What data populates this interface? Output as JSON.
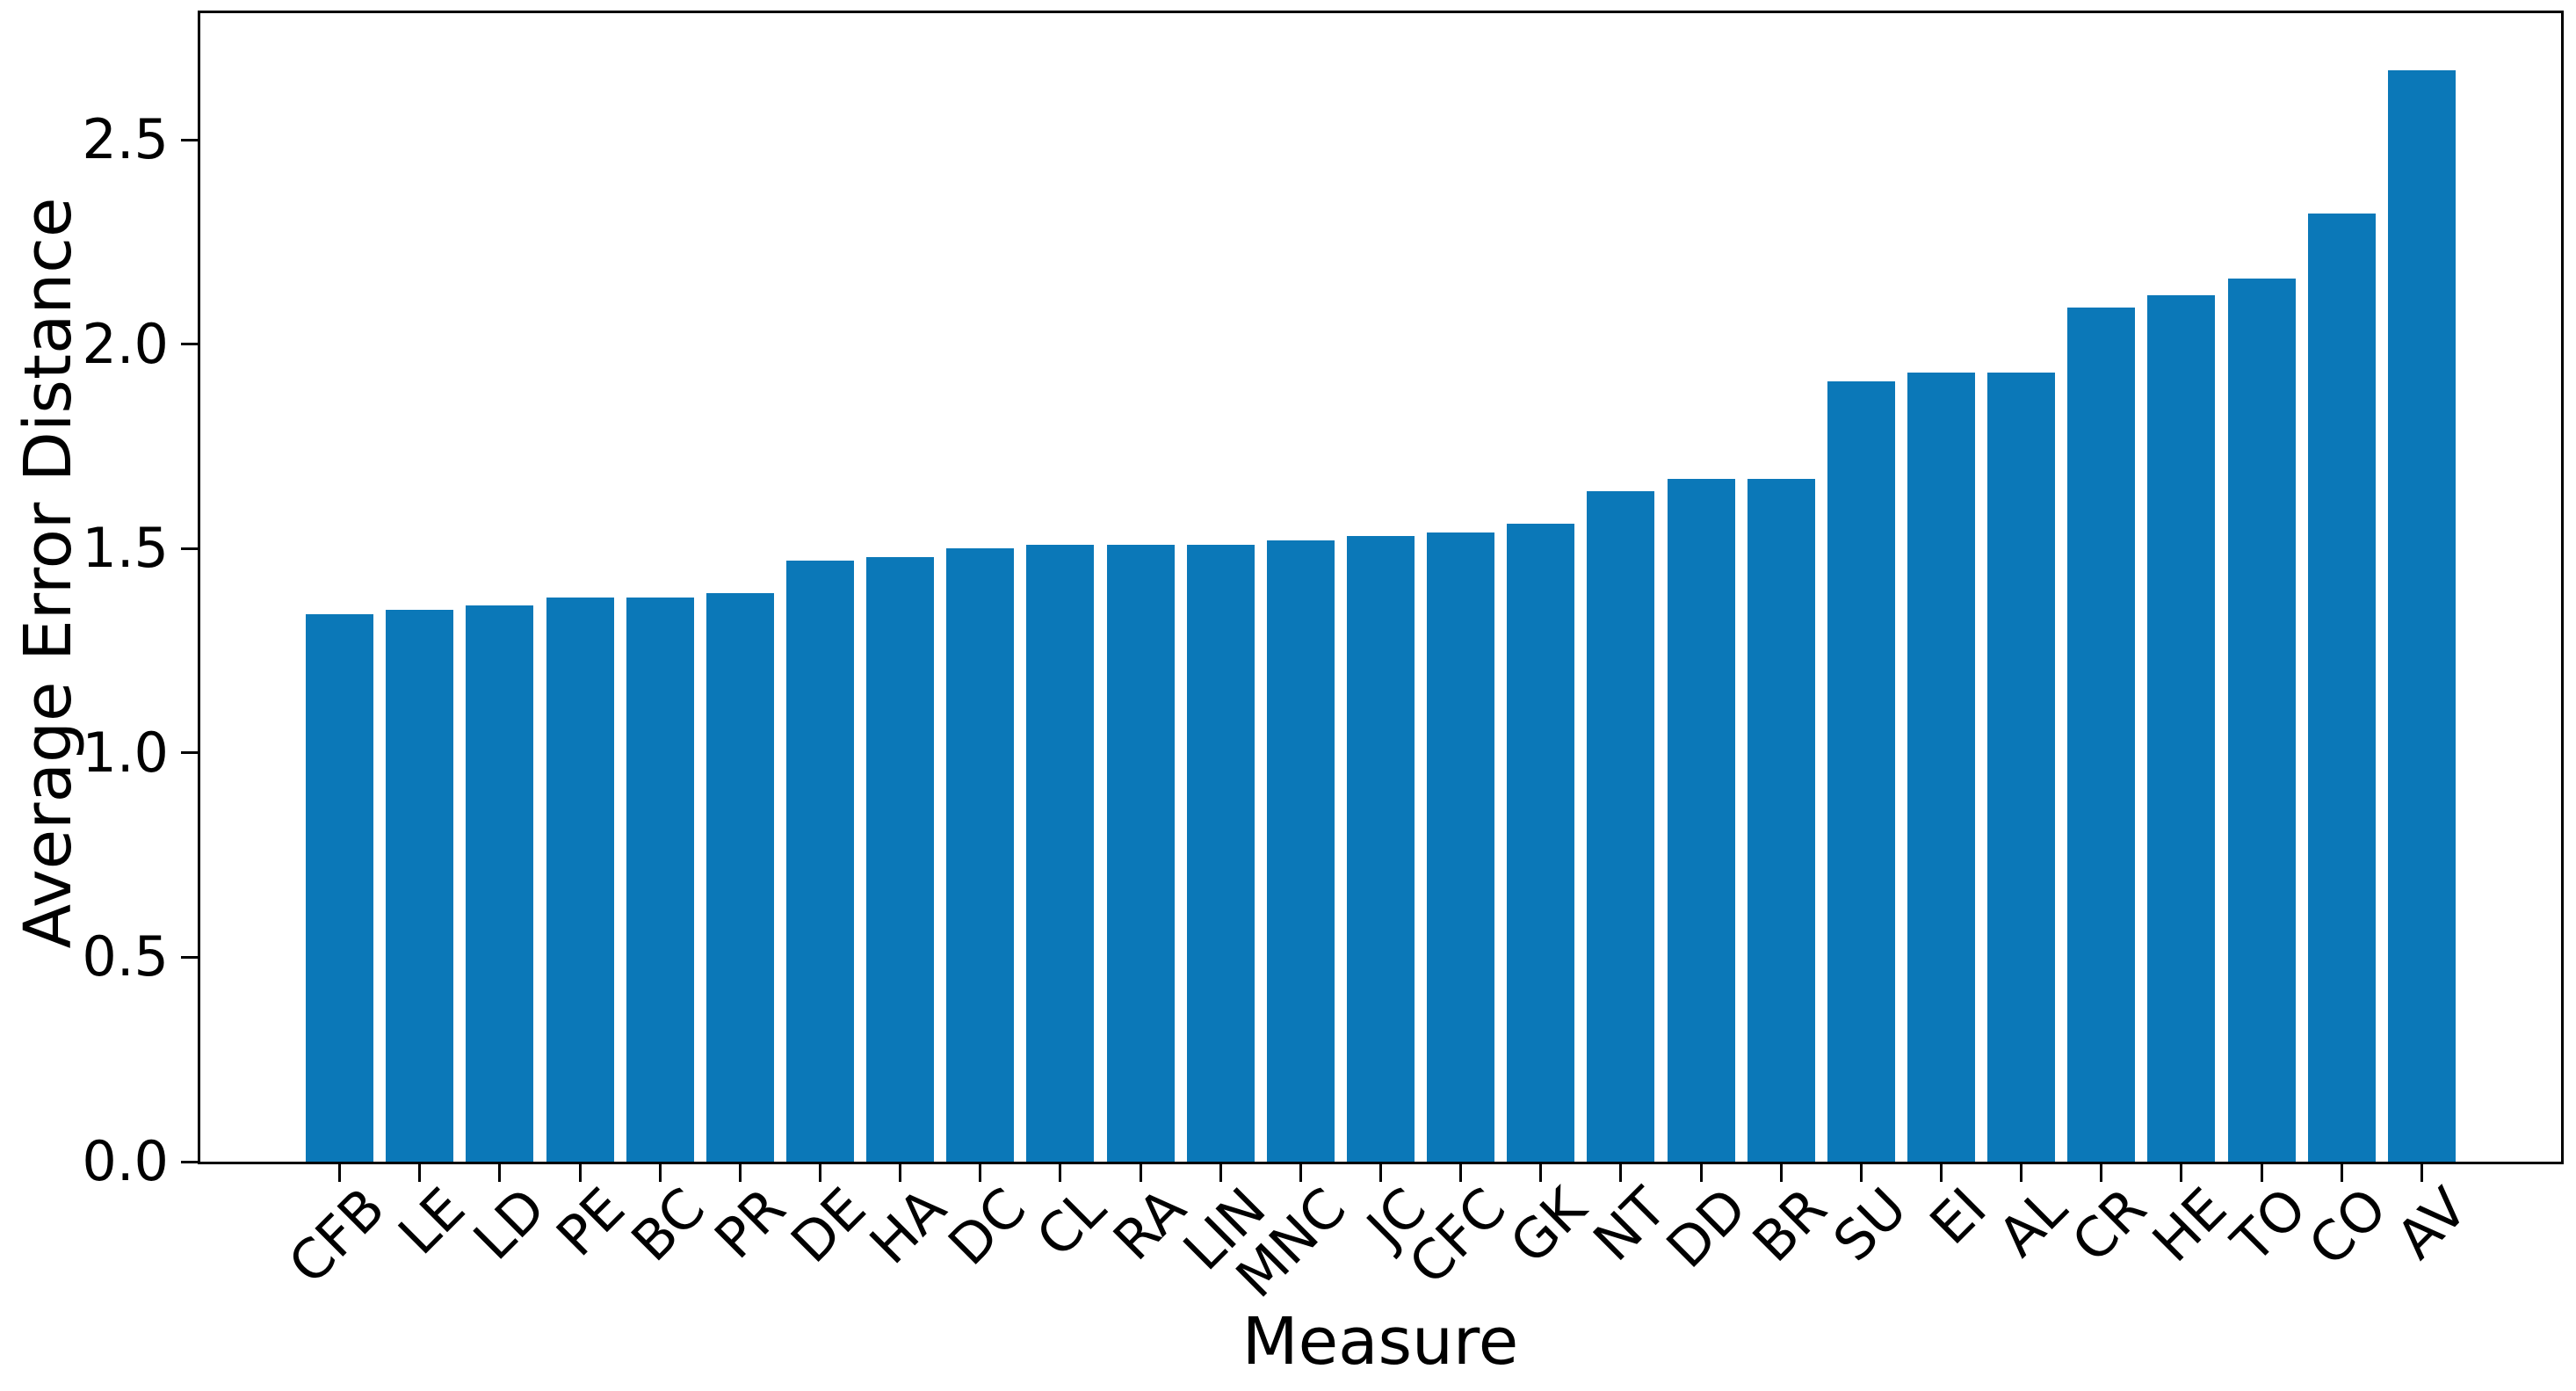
{
  "figure": {
    "background_color": "#ffffff",
    "text_color": "#000000",
    "axis_color": "#000000"
  },
  "chart_data": {
    "type": "bar",
    "title": "",
    "xlabel": "Measure",
    "ylabel": "Average Error Distance",
    "categories": [
      "CFB",
      "LE",
      "LD",
      "PE",
      "BC",
      "PR",
      "DE",
      "HA",
      "DC",
      "CL",
      "RA",
      "LIN",
      "MNC",
      "JC",
      "CFC",
      "GK",
      "NT",
      "DD",
      "BR",
      "SU",
      "EI",
      "AL",
      "CR",
      "HE",
      "TO",
      "CO",
      "AV"
    ],
    "values": [
      1.34,
      1.35,
      1.36,
      1.38,
      1.38,
      1.39,
      1.47,
      1.48,
      1.5,
      1.51,
      1.51,
      1.51,
      1.52,
      1.53,
      1.54,
      1.56,
      1.64,
      1.67,
      1.67,
      1.91,
      1.93,
      1.93,
      2.09,
      2.12,
      2.16,
      2.32,
      2.67
    ],
    "y_ticks": [
      0.0,
      0.5,
      1.0,
      1.5,
      2.0,
      2.5
    ],
    "ylim": [
      0,
      2.81
    ],
    "bar_color": "#0b78b8",
    "grid": false,
    "legend_position": "none",
    "x_tick_rotation_deg": 45
  }
}
